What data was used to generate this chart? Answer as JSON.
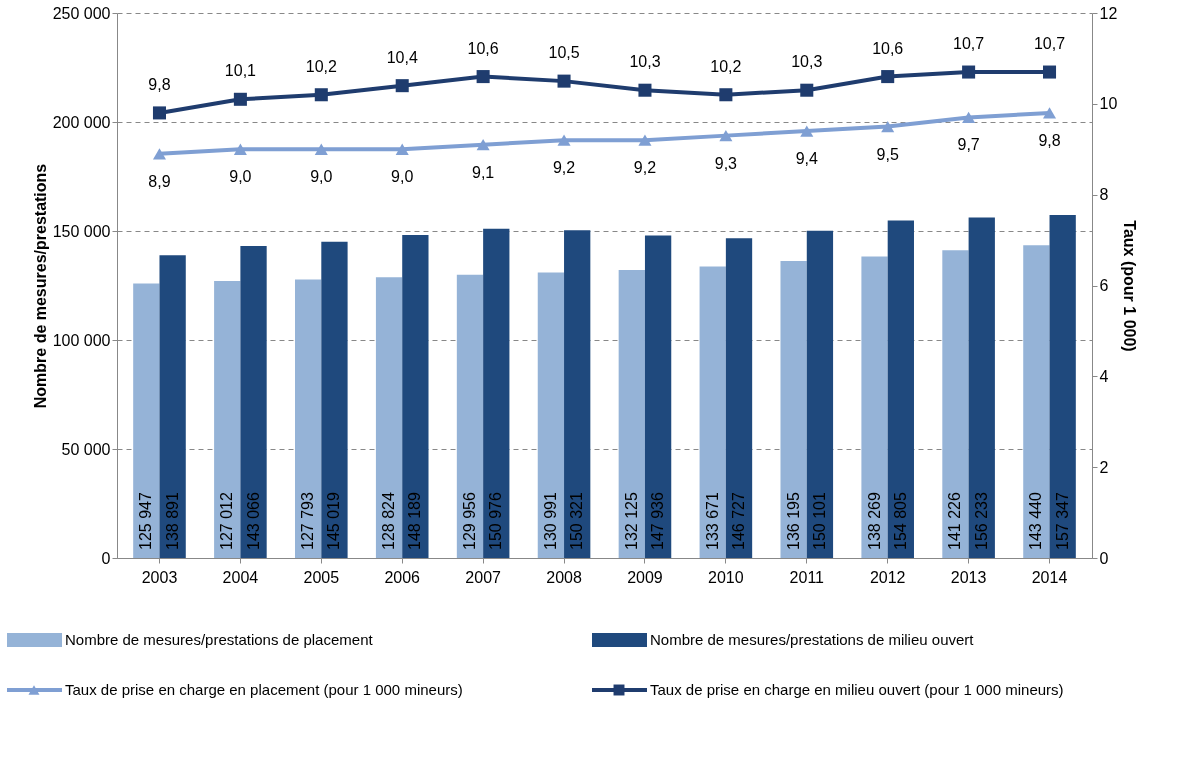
{
  "chart_data": {
    "type": "bar",
    "categories": [
      "2003",
      "2004",
      "2005",
      "2006",
      "2007",
      "2008",
      "2009",
      "2010",
      "2011",
      "2012",
      "2013",
      "2014"
    ],
    "ylabel": "Nombre de mesures/prestations",
    "y2label": "Taux (pour 1 000)",
    "ylim": [
      0,
      250000
    ],
    "yticks": [
      0,
      {
        "value": 50000,
        "label": "50 000"
      },
      {
        "value": 100000,
        "label": "100 000"
      },
      {
        "value": 150000,
        "label": "150 000"
      },
      {
        "value": 200000,
        "label": "200 000"
      },
      {
        "value": 250000,
        "label": "250 000"
      }
    ],
    "y2lim": [
      0,
      12
    ],
    "y2ticks": [
      0,
      2,
      4,
      6,
      8,
      10,
      12
    ],
    "grid": "y",
    "legend": "bottom",
    "series": [
      {
        "name": "Nombre de mesures/prestations de placement",
        "color": "#95b3d7",
        "values": [
          125947,
          127012,
          127793,
          128824,
          129956,
          130991,
          132125,
          133671,
          136195,
          138269,
          141226,
          143440
        ],
        "value_labels": [
          "125 947",
          "127 012",
          "127 793",
          "128 824",
          "129 956",
          "130 991",
          "132 125",
          "133 671",
          "136 195",
          "138 269",
          "141 226",
          "143 440"
        ]
      },
      {
        "name": "Nombre de mesures/prestations de milieu ouvert",
        "color": "#1f497d",
        "values": [
          138891,
          143066,
          145019,
          148189,
          150976,
          150321,
          147936,
          146727,
          150101,
          154805,
          156233,
          157347
        ],
        "value_labels": [
          "138 891",
          "143 066",
          "145 019",
          "148 189",
          "150 976",
          "150 321",
          "147 936",
          "146 727",
          "150 101",
          "154 805",
          "156 233",
          "157 347"
        ]
      },
      {
        "name": "Taux de prise en charge en placement (pour 1 000 mineurs)",
        "type": "line",
        "axis": "y2",
        "marker": "triangle",
        "line_style": "solid",
        "color": "#7f9fd3",
        "values": [
          8.9,
          9.0,
          9.0,
          9.0,
          9.1,
          9.2,
          9.2,
          9.3,
          9.4,
          9.5,
          9.7,
          9.8
        ],
        "value_labels": [
          "8,9",
          "9,0",
          "9,0",
          "9,0",
          "9,1",
          "9,2",
          "9,2",
          "9,3",
          "9,4",
          "9,5",
          "9,7",
          "9,8"
        ]
      },
      {
        "name": "Taux de prise en charge en milieu ouvert (pour 1 000 mineurs)",
        "type": "line",
        "axis": "y2",
        "marker": "square",
        "line_style": "solid",
        "color": "#1f3c6e",
        "values": [
          9.8,
          10.1,
          10.2,
          10.4,
          10.6,
          10.5,
          10.3,
          10.2,
          10.3,
          10.6,
          10.7,
          10.7
        ],
        "value_labels": [
          "9,8",
          "10,1",
          "10,2",
          "10,4",
          "10,6",
          "10,5",
          "10,3",
          "10,2",
          "10,3",
          "10,6",
          "10,7",
          "10,7"
        ]
      }
    ]
  }
}
